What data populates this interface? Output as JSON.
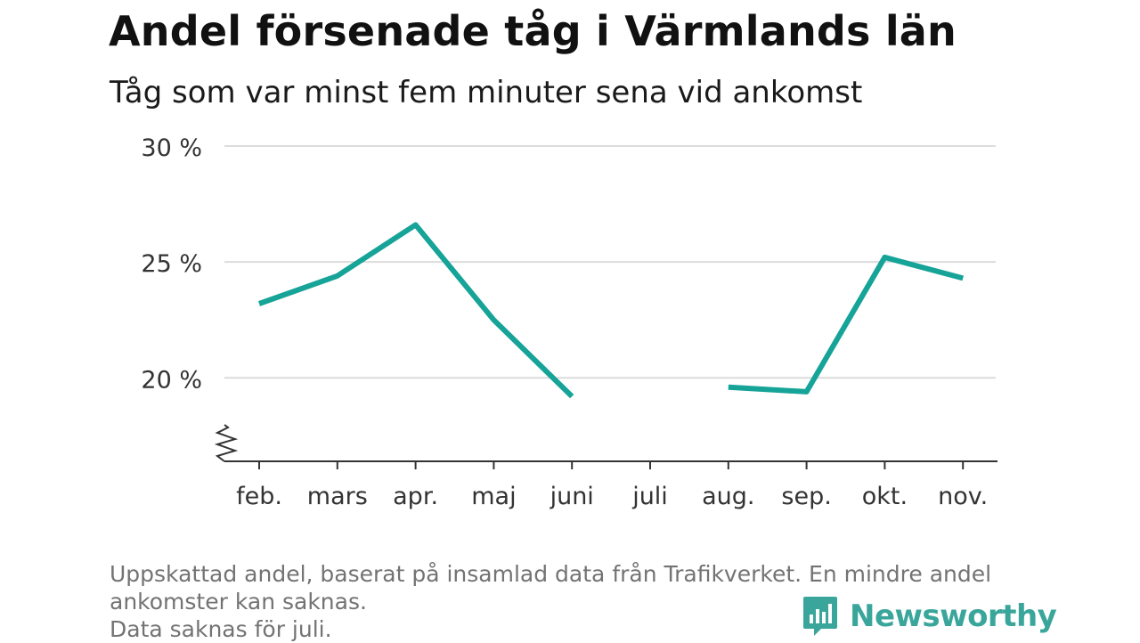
{
  "title": "Andel försenade tåg i Värmlands län",
  "subtitle": "Tåg som var minst fem minuter sena vid ankomst",
  "chart_data": {
    "type": "line",
    "categories": [
      "feb.",
      "mars",
      "apr.",
      "maj",
      "juni",
      "juli",
      "aug.",
      "sep.",
      "okt.",
      "nov."
    ],
    "series": [
      {
        "values": [
          23.2,
          24.4,
          26.6,
          22.5,
          19.2,
          null,
          19.6,
          19.4,
          25.2,
          24.3
        ]
      }
    ],
    "y_ticks": [
      20,
      25,
      30
    ],
    "y_tick_labels": [
      "20 %",
      "25 %",
      "30 %"
    ],
    "ylim": [
      16.4,
      30
    ],
    "y_axis_break": true,
    "grid": true,
    "line_color": "#16a398"
  },
  "footer": {
    "line1": "Uppskattad andel, baserat på insamlad data från Trafikverket. En mindre andel",
    "line2": "ankomster kan saknas.",
    "line3": "Data saknas för juli."
  },
  "brand": {
    "name": "Newsworthy",
    "icon": "newsworthy-logo-icon",
    "color": "#3aa69b"
  }
}
